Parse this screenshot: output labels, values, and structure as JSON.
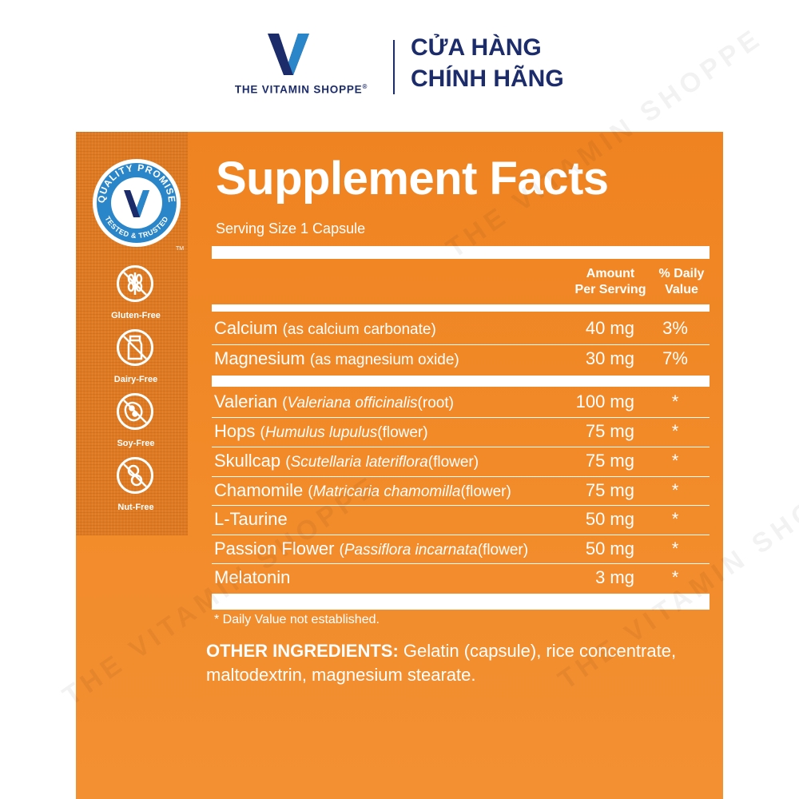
{
  "brand": {
    "name": "THE VITAMIN SHOPPE",
    "registered_mark": "®",
    "store_label_line1": "CỬA HÀNG",
    "store_label_line2": "CHÍNH HÃNG",
    "navy": "#1c2c6b",
    "watermark_text": "THE VITAMIN SHOPPE"
  },
  "badges": {
    "quality_promise": {
      "top_text": "QUALITY PROMISE",
      "bottom_text": "TESTED & TRUSTED",
      "trademark": "TM",
      "icon": "vitamin-shoppe-v-icon"
    },
    "allergens": [
      {
        "label": "Gluten-Free",
        "icon": "wheat-crossed-icon"
      },
      {
        "label": "Dairy-Free",
        "icon": "milk-bottle-icon"
      },
      {
        "label": "Soy-Free",
        "icon": "soybean-icon"
      },
      {
        "label": "Nut-Free",
        "icon": "peanut-icon"
      }
    ]
  },
  "facts": {
    "title": "Supplement Facts",
    "serving_size": "Serving Size 1 Capsule",
    "col_amount_line1": "Amount",
    "col_amount_line2": "Per Serving",
    "col_dv_line1": "% Daily",
    "col_dv_line2": "Value",
    "rows": [
      {
        "name": "Calcium",
        "qualifier": "(as calcium carbonate)",
        "latin": "",
        "part": "",
        "amount": "40 mg",
        "dv": "3%"
      },
      {
        "name": "Magnesium",
        "qualifier": "(as magnesium oxide)",
        "latin": "",
        "part": "",
        "amount": "30 mg",
        "dv": "7%"
      },
      {
        "name": "Valerian",
        "qualifier": "",
        "latin": "Valeriana officinalis",
        "part": "(root)",
        "amount": "100 mg",
        "dv": "*"
      },
      {
        "name": "Hops",
        "qualifier": "",
        "latin": "Humulus lupulus",
        "part": "(flower)",
        "amount": "75 mg",
        "dv": "*"
      },
      {
        "name": "Skullcap",
        "qualifier": "",
        "latin": "Scutellaria lateriflora",
        "part": "(flower)",
        "amount": "75 mg",
        "dv": "*"
      },
      {
        "name": "Chamomile",
        "qualifier": "",
        "latin": "Matricaria chamomilla",
        "part": "(flower)",
        "amount": "75 mg",
        "dv": "*"
      },
      {
        "name": "L-Taurine",
        "qualifier": "",
        "latin": "",
        "part": "",
        "amount": "50 mg",
        "dv": "*"
      },
      {
        "name": "Passion Flower",
        "qualifier": "",
        "latin": "Passiflora incarnata",
        "part": "(flower)",
        "amount": "50 mg",
        "dv": "*"
      },
      {
        "name": "Melatonin",
        "qualifier": "",
        "latin": "",
        "part": "",
        "amount": "3 mg",
        "dv": "*"
      }
    ],
    "footnote": "* Daily Value not established.",
    "other_ingredients_label": "OTHER INGREDIENTS:",
    "other_ingredients_text": " Gelatin (capsule), rice concentrate, maltodextrin, magnesium stearate."
  },
  "colors": {
    "label_orange": "#f08a2a",
    "strip_orange": "#de7a21",
    "badge_blue": "#2a86c8",
    "text_white": "#ffffff"
  }
}
